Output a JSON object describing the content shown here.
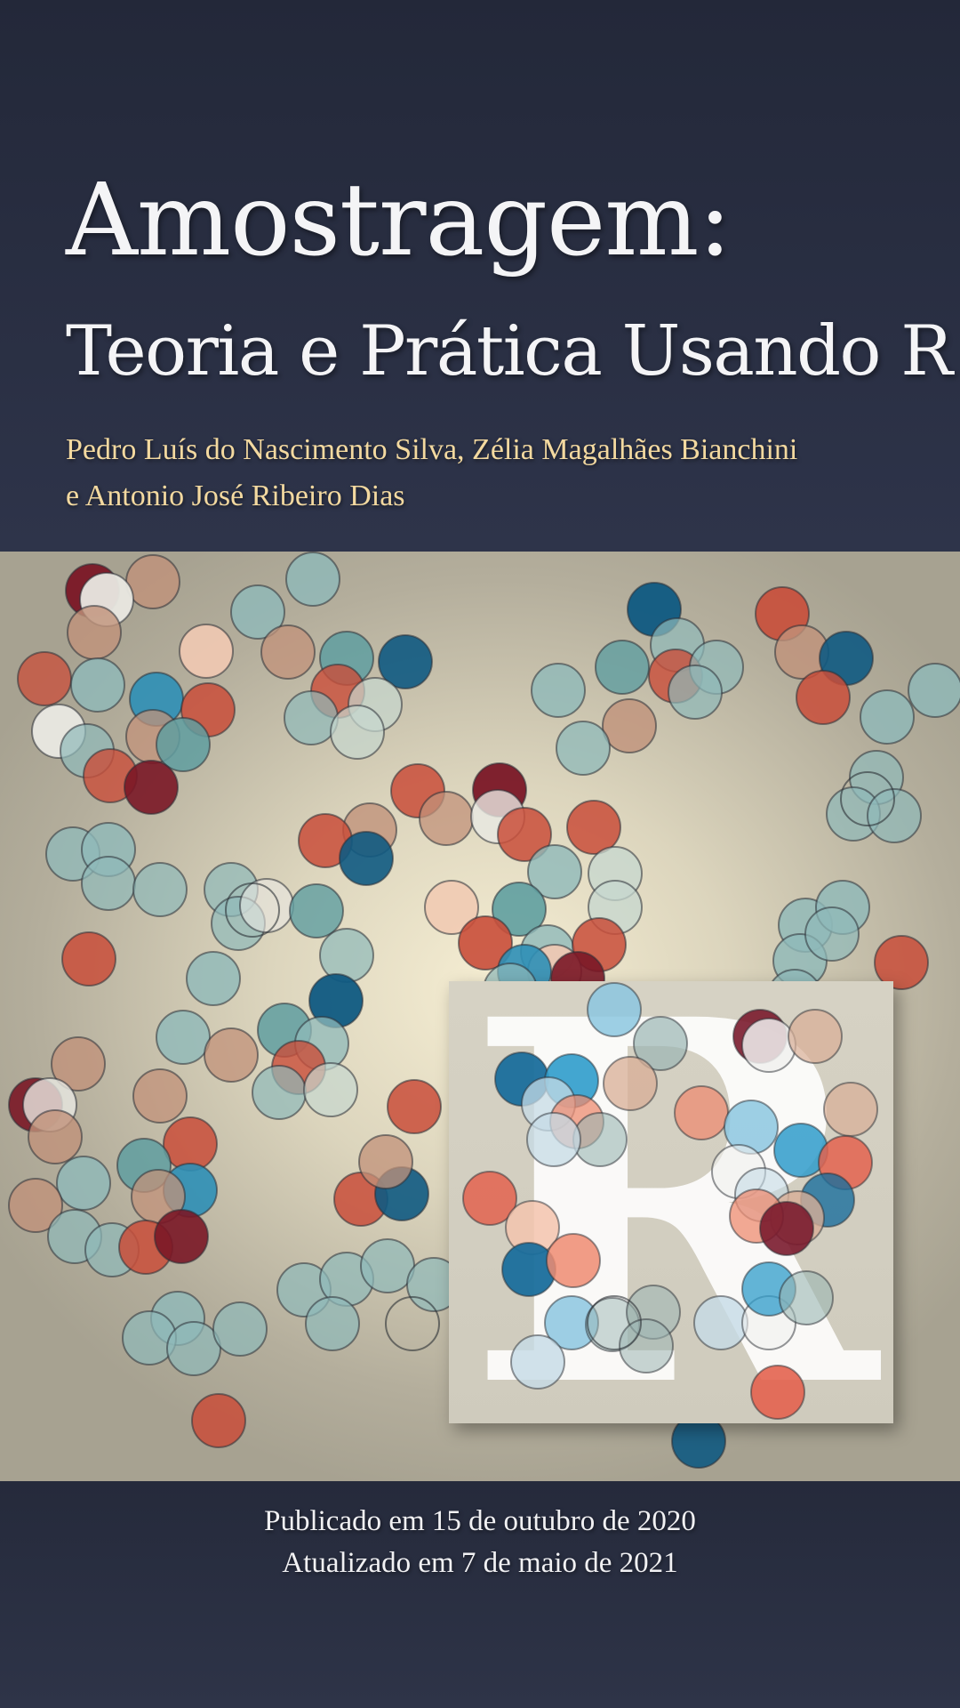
{
  "book": {
    "title": "Amostragem:",
    "subtitle": "Teoria e Prática Usando R",
    "authors_line1": "Pedro Luís do Nascimento Silva, Zélia Magalhães Bianchini",
    "authors_line2": "e Antonio José Ribeiro Dias",
    "published": "Publicado em 15 de outubro de 2020",
    "updated": "Atualizado em 7 de maio de 2021"
  },
  "logo": {
    "letter": "R"
  },
  "colors": {
    "background_dark": "#262b3d",
    "title_text": "#f4f4f6",
    "author_text": "#f3d9a0",
    "circle_palette": [
      "#0f5a82",
      "#2e8fb6",
      "#5f9ea0",
      "#8fb9b9",
      "#c6d7cf",
      "#e9e8e2",
      "#f1c9b2",
      "#e58c63",
      "#c94e3a",
      "#7a1726",
      "#c1927a"
    ]
  }
}
